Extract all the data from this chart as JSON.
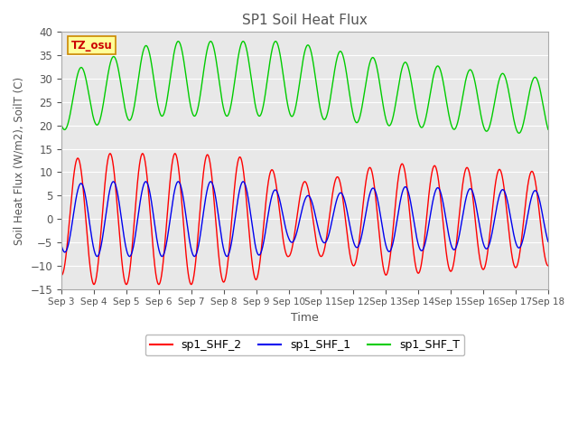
{
  "title": "SP1 Soil Heat Flux",
  "ylabel": "Soil Heat Flux (W/m2), SoilT (C)",
  "xlabel": "Time",
  "ylim": [
    -15,
    40
  ],
  "yticks": [
    -15,
    -10,
    -5,
    0,
    5,
    10,
    15,
    20,
    25,
    30,
    35,
    40
  ],
  "x_tick_labels": [
    "Sep 3",
    "Sep 4",
    "Sep 5",
    "Sep 6",
    "Sep 7",
    "Sep 8",
    "Sep 9",
    "Sep 10",
    "Sep 11",
    "Sep 12",
    "Sep 13",
    "Sep 14",
    "Sep 15",
    "Sep 16",
    "Sep 17",
    "Sep 18"
  ],
  "tz_label": "TZ_osu",
  "legend_entries": [
    "sp1_SHF_2",
    "sp1_SHF_1",
    "sp1_SHF_T"
  ],
  "line_colors": [
    "#ff0000",
    "#0000ee",
    "#00cc00"
  ],
  "fig_bg_color": "#ffffff",
  "plot_bg_color": "#e8e8e8",
  "grid_color": "#ffffff"
}
